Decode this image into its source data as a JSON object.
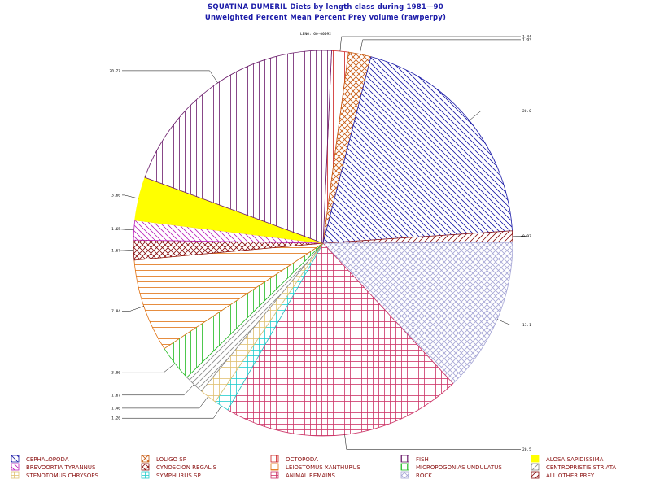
{
  "chart_data": {
    "type": "pie",
    "title": "SQUATINA DUMERIL Diets by length class during 1981—90",
    "subtitle": "Unweighted Percent Mean Percent Prey  volume (rawperpy)",
    "corner_label": "LENG: 60-00092",
    "slices": [
      {
        "label": "OCTOPODA",
        "value": 1.44,
        "display": "1.44",
        "color": "#cc1f1f",
        "pattern": "vertical"
      },
      {
        "label": "LOLIGO SP",
        "value": 1.93,
        "display": "1.93",
        "color": "#c85a10",
        "pattern": "crosshatch-diag"
      },
      {
        "label": "CEPHALOPODA",
        "value": 20.0,
        "display": "20.0",
        "color": "#1a1aa8",
        "pattern": "diag-down"
      },
      {
        "label": "ALL OTHER PREY",
        "value": 0.97,
        "display": "0.97",
        "color": "#8a1010",
        "pattern": "diag-up"
      },
      {
        "label": "ROCK",
        "value": 13.1,
        "display": "13.1",
        "color": "#a6a6d6",
        "pattern": "crosshatch-diag"
      },
      {
        "label": "ANIMAL REMAINS",
        "value": 20.5,
        "display": "20.5",
        "color": "#cc3366",
        "pattern": "crosshatch"
      },
      {
        "label": "SYMPHURUS SP",
        "value": 1.26,
        "display": "1.26",
        "color": "#22cccc",
        "pattern": "crosshatch"
      },
      {
        "label": "STENOTOMUS CHRYSOPS",
        "value": 1.46,
        "display": "1.46",
        "color": "#e0c070",
        "pattern": "crosshatch"
      },
      {
        "label": "CENTROPRISTIS STRIATA",
        "value": 1.67,
        "display": "1.67",
        "color": "#8a8a8a",
        "pattern": "diag-up"
      },
      {
        "label": "MICROPOGONIAS UNDULATUS",
        "value": 3.06,
        "display": "3.06",
        "color": "#22bb22",
        "pattern": "vertical"
      },
      {
        "label": "LEIOSTOMUS XANTHURUS",
        "value": 7.84,
        "display": "7.84",
        "color": "#e07010",
        "pattern": "horizontal"
      },
      {
        "label": "CYNOSCION REGALIS",
        "value": 1.67,
        "display": "1.67",
        "color": "#8a1010",
        "pattern": "crosshatch-diag"
      },
      {
        "label": "BREVOORTIA TYRANNUS",
        "value": 1.65,
        "display": "1.65",
        "color": "#bb22bb",
        "pattern": "diag-down"
      },
      {
        "label": "ALOSA SAPIDISSIMA",
        "value": 3.66,
        "display": "3.66",
        "color": "#ffff00",
        "pattern": "solid"
      },
      {
        "label": "FISH",
        "value": 20.27,
        "display": "20.27",
        "color": "#6a1a6a",
        "pattern": "vertical"
      }
    ],
    "legend": [
      {
        "label": "CEPHALOPODA",
        "color": "#1a1aa8",
        "pattern": "diag-down"
      },
      {
        "label": "LOLIGO SP",
        "color": "#c85a10",
        "pattern": "crosshatch-diag"
      },
      {
        "label": "OCTOPODA",
        "color": "#cc1f1f",
        "pattern": "vertical"
      },
      {
        "label": "FISH",
        "color": "#6a1a6a",
        "pattern": "vertical"
      },
      {
        "label": "ALOSA SAPIDISSIMA",
        "color": "#ffff00",
        "pattern": "solid"
      },
      {
        "label": "BREVOORTIA TYRANNUS",
        "color": "#bb22bb",
        "pattern": "diag-down"
      },
      {
        "label": "CYNOSCION REGALIS",
        "color": "#8a1010",
        "pattern": "crosshatch-diag"
      },
      {
        "label": "LEIOSTOMUS XANTHURUS",
        "color": "#e07010",
        "pattern": "horizontal"
      },
      {
        "label": "MICROPOGONIAS UNDULATUS",
        "color": "#22bb22",
        "pattern": "vertical"
      },
      {
        "label": "CENTROPRISTIS STRIATA",
        "color": "#8a8a8a",
        "pattern": "diag-up"
      },
      {
        "label": "STENOTOMUS CHRYSOPS",
        "color": "#e0c070",
        "pattern": "crosshatch"
      },
      {
        "label": "SYMPHURUS SP",
        "color": "#22cccc",
        "pattern": "crosshatch"
      },
      {
        "label": "ANIMAL REMAINS",
        "color": "#cc3366",
        "pattern": "crosshatch"
      },
      {
        "label": "ROCK",
        "color": "#a6a6d6",
        "pattern": "crosshatch-diag"
      },
      {
        "label": "ALL OTHER PREY",
        "color": "#8a1010",
        "pattern": "diag-up"
      }
    ],
    "legend_placement": "bottom",
    "grid": false
  }
}
